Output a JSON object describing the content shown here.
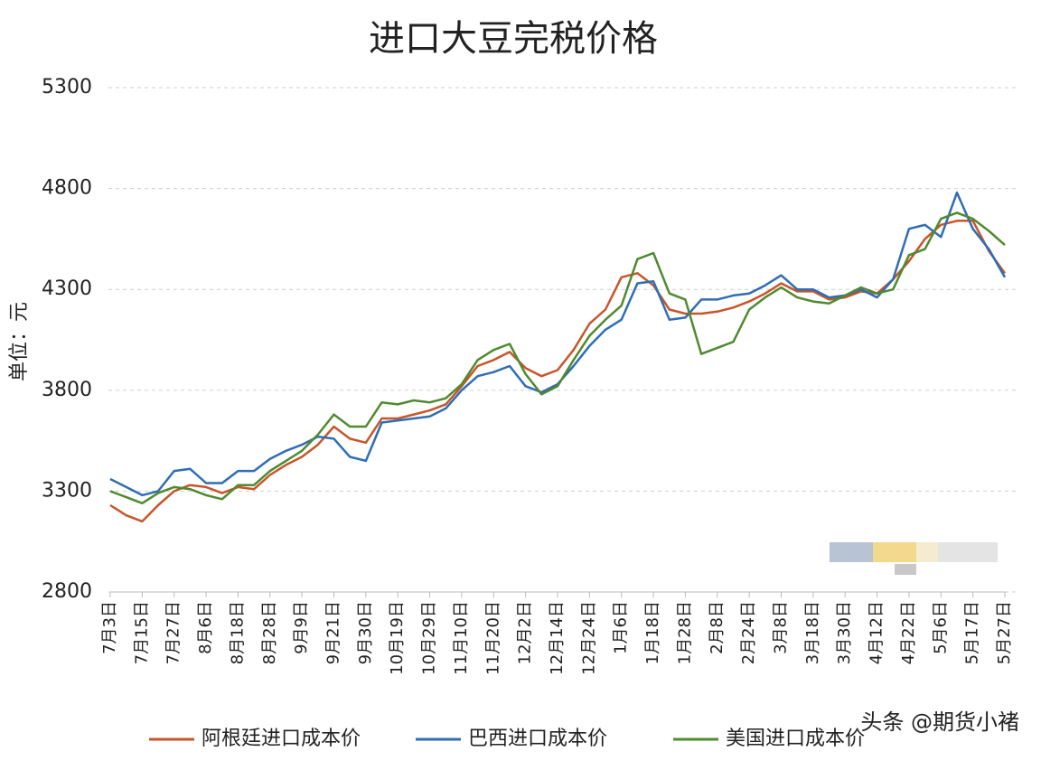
{
  "chart_data": {
    "type": "line",
    "title": "进口大豆完税价格",
    "y_label": "单位：元",
    "categories": [
      "7月3日",
      null,
      "7月15日",
      null,
      "7月27日",
      null,
      "8月6日",
      null,
      "8月18日",
      null,
      "8月28日",
      null,
      "9月9日",
      null,
      "9月21日",
      null,
      "9月30日",
      null,
      "10月19日",
      null,
      "10月29日",
      null,
      "11月10日",
      null,
      "11月20日",
      null,
      "12月2日",
      null,
      "12月14日",
      null,
      "12月24日",
      null,
      "1月6日",
      null,
      "1月18日",
      null,
      "1月28日",
      null,
      "2月8日",
      null,
      "2月24日",
      null,
      "3月8日",
      null,
      "3月18日",
      null,
      "3月30日",
      null,
      "4月12日",
      null,
      "4月22日",
      null,
      "5月6日",
      null,
      "5月17日",
      null,
      "5月27日"
    ],
    "series": [
      {
        "name": "阿根廷进口成本价",
        "color": "#c8552a",
        "values": [
          3230,
          3180,
          3150,
          3230,
          3300,
          3330,
          3320,
          3290,
          3320,
          3310,
          3380,
          3430,
          3470,
          3530,
          3620,
          3560,
          3540,
          3660,
          3660,
          3680,
          3700,
          3730,
          3820,
          3920,
          3950,
          3990,
          3910,
          3870,
          3900,
          4000,
          4130,
          4200,
          4360,
          4380,
          4320,
          4200,
          4180,
          4180,
          4190,
          4210,
          4240,
          4280,
          4330,
          4290,
          4290,
          4250,
          4260,
          4290,
          4280,
          4350,
          4440,
          4550,
          4620,
          4640,
          4640,
          4490,
          4380
        ]
      },
      {
        "name": "巴西进口成本价",
        "color": "#2f6db5",
        "values": [
          3360,
          3320,
          3280,
          3300,
          3400,
          3410,
          3340,
          3340,
          3400,
          3400,
          3460,
          3500,
          3530,
          3570,
          3560,
          3470,
          3450,
          3640,
          3650,
          3660,
          3670,
          3710,
          3800,
          3870,
          3890,
          3920,
          3820,
          3790,
          3830,
          3920,
          4020,
          4100,
          4150,
          4330,
          4340,
          4150,
          4160,
          4250,
          4250,
          4270,
          4280,
          4320,
          4370,
          4300,
          4300,
          4260,
          4270,
          4300,
          4260,
          4350,
          4600,
          4620,
          4560,
          4780,
          4600,
          4500,
          4360
        ]
      },
      {
        "name": "美国进口成本价",
        "color": "#4f8a2f",
        "values": [
          3300,
          3270,
          3240,
          3290,
          3320,
          3310,
          3280,
          3260,
          3330,
          3330,
          3400,
          3450,
          3500,
          3580,
          3680,
          3620,
          3620,
          3740,
          3730,
          3750,
          3740,
          3760,
          3830,
          3950,
          4000,
          4030,
          3880,
          3780,
          3820,
          3950,
          4070,
          4150,
          4220,
          4450,
          4480,
          4280,
          4250,
          3980,
          4010,
          4040,
          4200,
          4260,
          4310,
          4260,
          4240,
          4230,
          4270,
          4310,
          4280,
          4300,
          4470,
          4500,
          4650,
          4680,
          4650,
          4590,
          4520
        ]
      }
    ],
    "ylim": [
      2800,
      5300
    ],
    "yticks": [
      2800,
      3300,
      3800,
      4300,
      4800,
      5300
    ],
    "grid": true,
    "watermark": "头条 @期货小褚"
  }
}
